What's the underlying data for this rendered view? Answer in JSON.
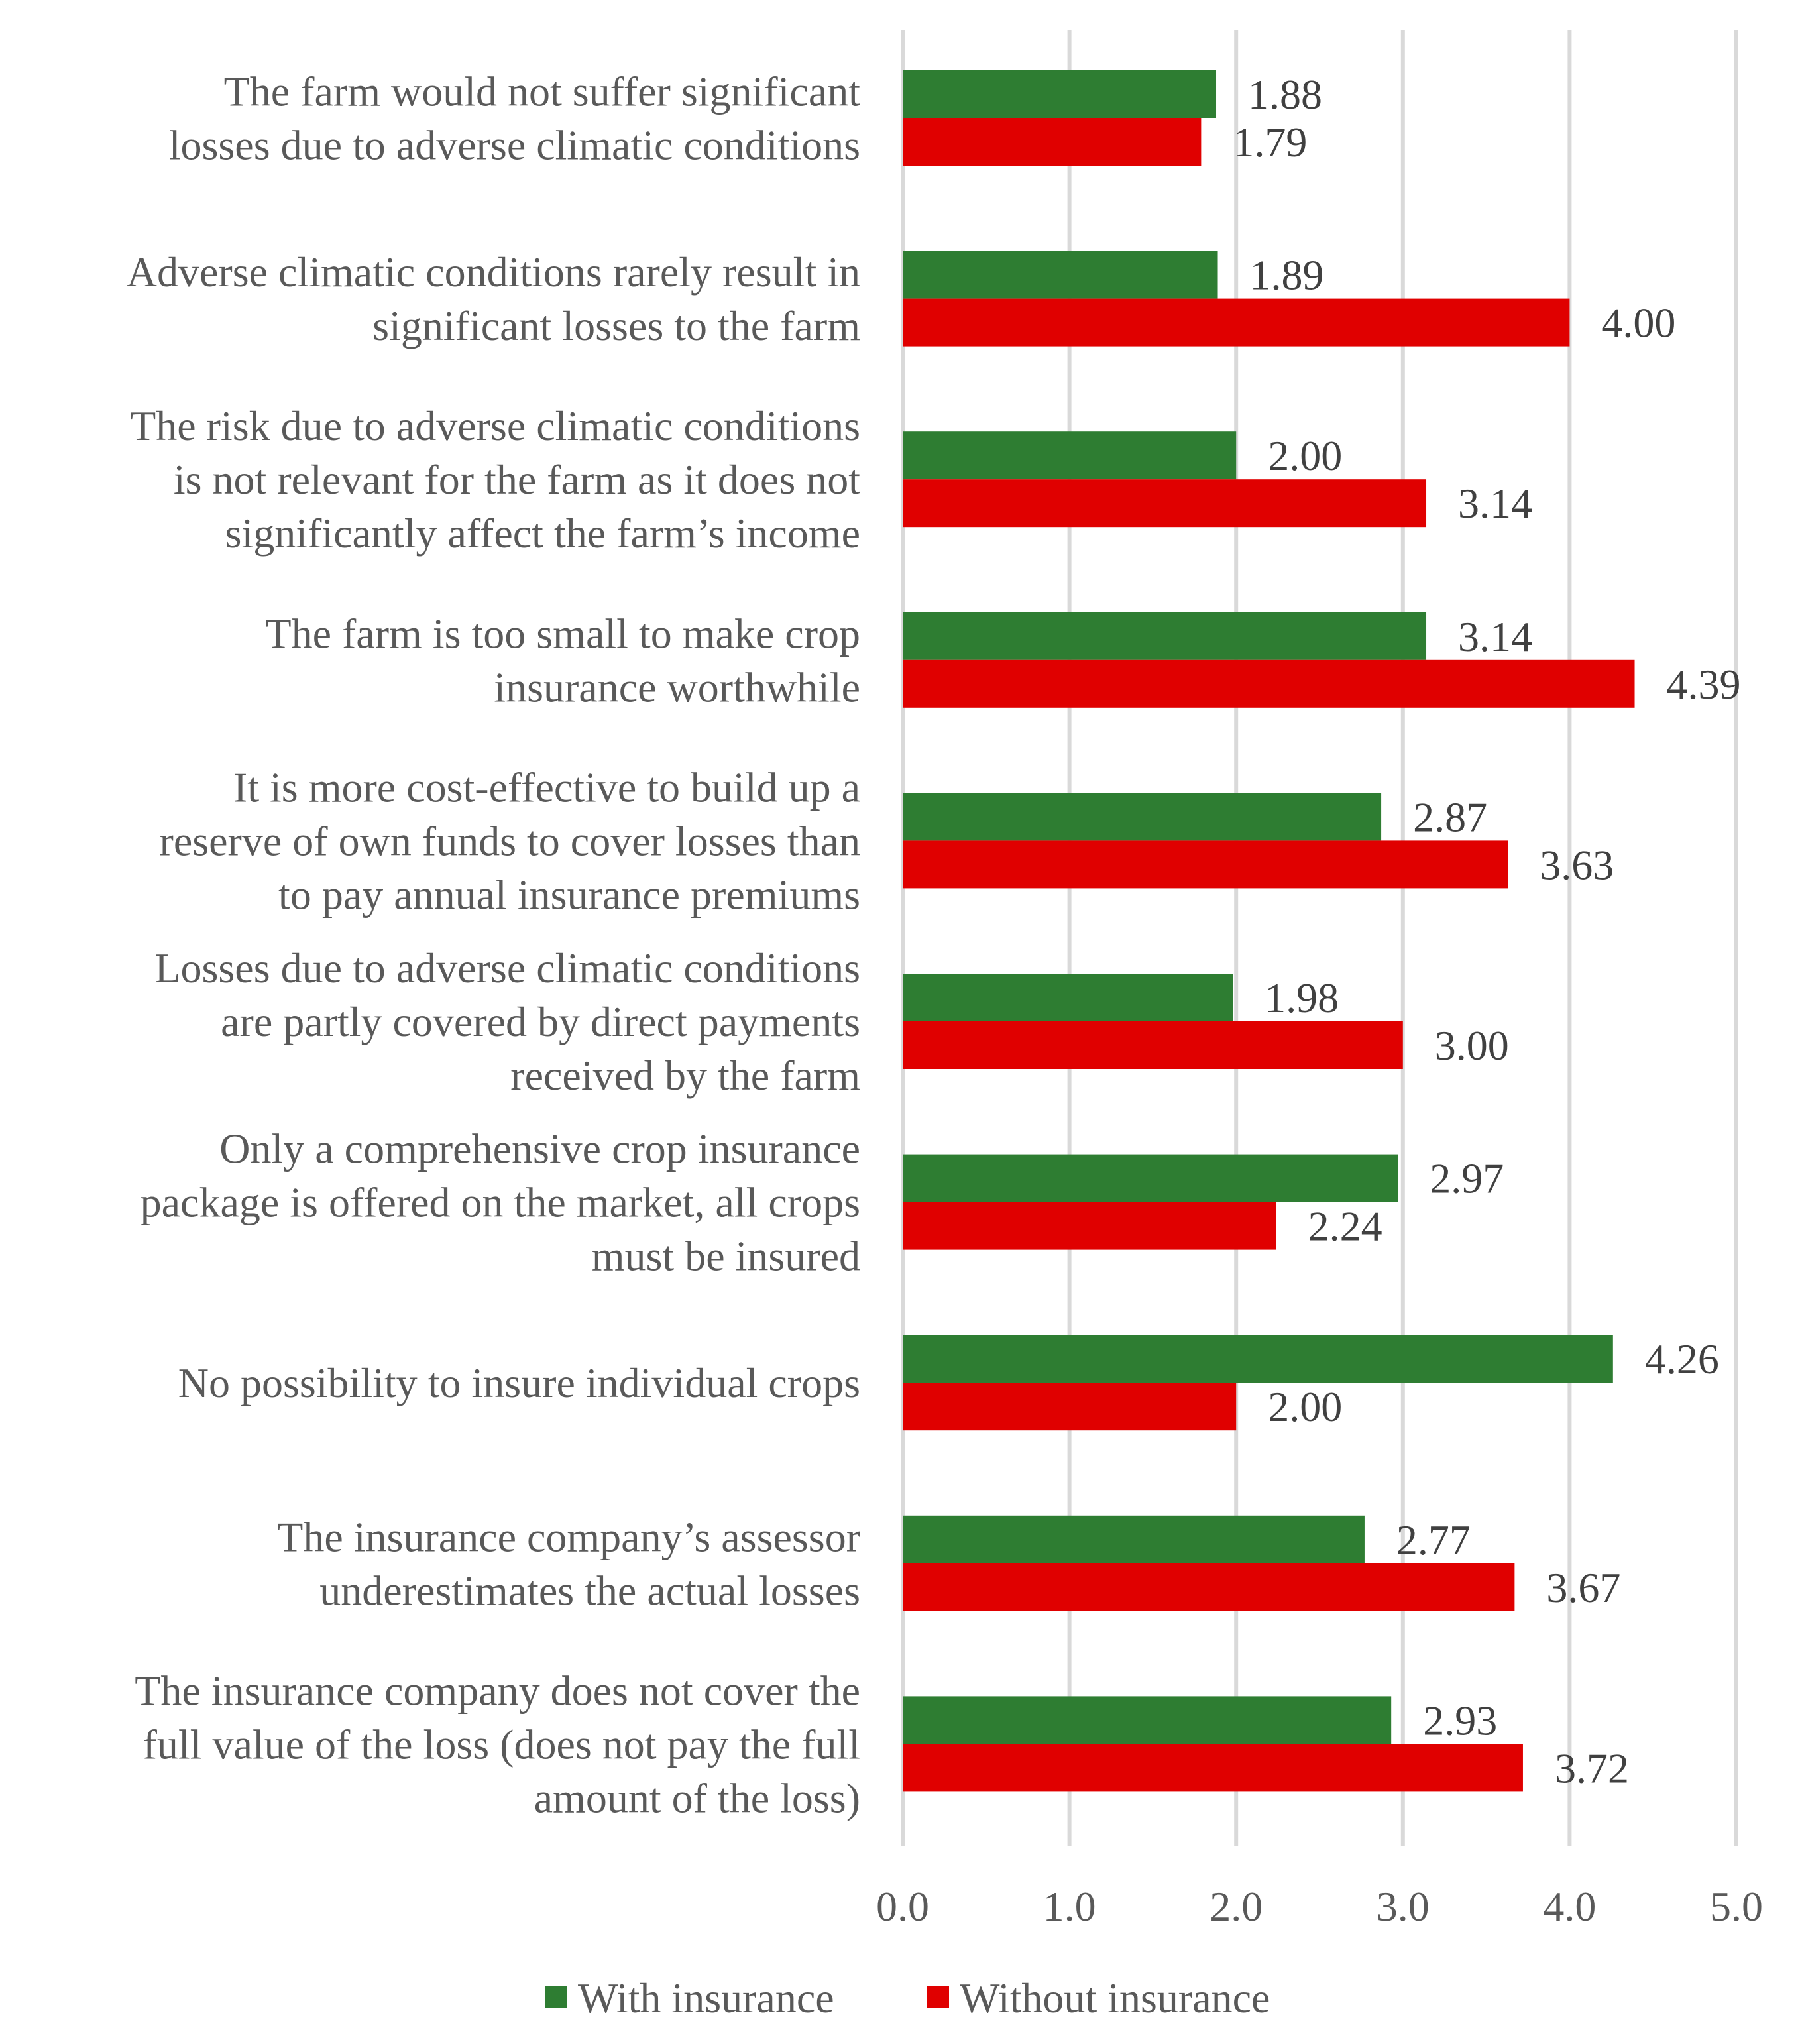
{
  "chart_data": {
    "type": "bar",
    "orientation": "horizontal",
    "title": "",
    "xlabel": "",
    "ylabel": "",
    "xlim": [
      0,
      5
    ],
    "ticks": [
      "0.0",
      "1.0",
      "2.0",
      "3.0",
      "4.0",
      "5.0"
    ],
    "grid": true,
    "legend_position": "bottom",
    "categories": [
      [
        "The farm would not suffer significant",
        "losses due to adverse climatic conditions"
      ],
      [
        "Adverse climatic conditions rarely result in",
        "significant losses to the farm"
      ],
      [
        "The risk due to adverse climatic conditions",
        "is not relevant for the farm as it does not",
        "significantly affect the farm’s income"
      ],
      [
        "The farm is too small to make crop",
        "insurance worthwhile"
      ],
      [
        "It is more cost-effective to build up a",
        "reserve of own funds to cover losses than",
        "to pay annual insurance premiums"
      ],
      [
        "Losses due to adverse climatic conditions",
        "are partly covered by direct payments",
        "received by the farm"
      ],
      [
        "Only a comprehensive crop insurance",
        "package is offered on the market, all crops",
        "must be insured"
      ],
      [
        "No possibility to insure individual crops"
      ],
      [
        "The insurance company’s assessor",
        "underestimates the actual losses"
      ],
      [
        "The insurance company does not cover the",
        "full value of the loss (does not pay the full",
        "amount of the loss)"
      ]
    ],
    "series": [
      {
        "name": "With insurance",
        "color": "#2e7d32",
        "values": [
          1.88,
          1.89,
          2.0,
          3.14,
          2.87,
          1.98,
          2.97,
          4.26,
          2.77,
          2.93
        ],
        "labels": [
          "1.88",
          "1.89",
          "2.00",
          "3.14",
          "2.87",
          "1.98",
          "2.97",
          "4.26",
          "2.77",
          "2.93"
        ]
      },
      {
        "name": "Without insurance",
        "color": "#e00000",
        "values": [
          1.79,
          4.0,
          3.14,
          4.39,
          3.63,
          3.0,
          2.24,
          2.0,
          3.67,
          3.72
        ],
        "labels": [
          "1.79",
          "4.00",
          "3.14",
          "4.39",
          "3.63",
          "3.00",
          "2.24",
          "2.00",
          "3.67",
          "3.72"
        ]
      }
    ]
  }
}
